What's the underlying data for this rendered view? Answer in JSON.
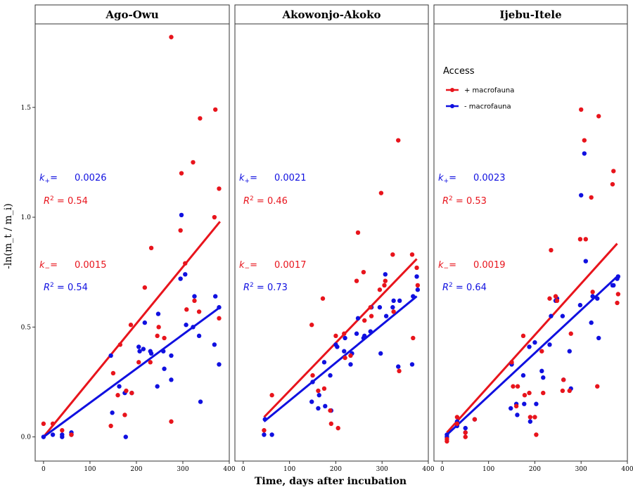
{
  "chart_data": {
    "type": "scatter",
    "x_axis_title": "Time, days after incubation",
    "y_axis_title": "-ln(m_t / m_i)",
    "xlim": [
      -18,
      400
    ],
    "ylim": [
      -0.11,
      1.88
    ],
    "x_ticks": [
      0,
      100,
      200,
      300,
      400
    ],
    "y_ticks": [
      0.0,
      0.5,
      1.0,
      1.5
    ],
    "y_tick_labels": [
      "0.0",
      "0.5",
      "1.0",
      "1.5"
    ],
    "grid": false,
    "legend": {
      "title": "Access",
      "placement": "inside-right-panel-top",
      "entries": [
        {
          "label": "+ macrofauna",
          "color": "#e8141c"
        },
        {
          "label": "- macrofauna",
          "color": "#1010e0"
        }
      ]
    },
    "colors": {
      "plus": "#e8141c",
      "minus": "#1010e0"
    },
    "panels": [
      {
        "name": "Ago-Owu",
        "k_plus": "0.0026",
        "r2_plus": "0.54",
        "k_minus": "0.0015",
        "r2_minus": "0.54",
        "line_plus": {
          "x": [
            0,
            380
          ],
          "y": [
            0.0,
            0.98
          ]
        },
        "line_minus": {
          "x": [
            0,
            380
          ],
          "y": [
            0.0,
            0.59
          ]
        },
        "points_plus": [
          [
            0,
            0.06
          ],
          [
            20,
            0.06
          ],
          [
            40,
            0.03
          ],
          [
            60,
            0.01
          ],
          [
            145,
            0.05
          ],
          [
            150,
            0.29
          ],
          [
            160,
            0.19
          ],
          [
            165,
            0.42
          ],
          [
            175,
            0.1
          ],
          [
            178,
            0.21
          ],
          [
            188,
            0.51
          ],
          [
            190,
            0.2
          ],
          [
            205,
            0.34
          ],
          [
            218,
            0.68
          ],
          [
            230,
            0.34
          ],
          [
            232,
            0.86
          ],
          [
            245,
            0.46
          ],
          [
            248,
            0.5
          ],
          [
            260,
            0.45
          ],
          [
            275,
            0.07
          ],
          [
            275,
            1.82
          ],
          [
            295,
            0.94
          ],
          [
            297,
            1.2
          ],
          [
            305,
            0.79
          ],
          [
            308,
            0.58
          ],
          [
            322,
            1.25
          ],
          [
            325,
            0.62
          ],
          [
            335,
            0.57
          ],
          [
            337,
            1.45
          ],
          [
            368,
            1.0
          ],
          [
            370,
            1.49
          ],
          [
            378,
            1.13
          ],
          [
            378,
            0.54
          ]
        ],
        "points_minus": [
          [
            0,
            0.0
          ],
          [
            20,
            0.01
          ],
          [
            40,
            0.0
          ],
          [
            40,
            0.01
          ],
          [
            60,
            0.02
          ],
          [
            60,
            0.01
          ],
          [
            145,
            0.37
          ],
          [
            148,
            0.11
          ],
          [
            163,
            0.23
          ],
          [
            175,
            0.2
          ],
          [
            177,
            0.0
          ],
          [
            190,
            0.2
          ],
          [
            205,
            0.41
          ],
          [
            207,
            0.39
          ],
          [
            215,
            0.4
          ],
          [
            218,
            0.52
          ],
          [
            230,
            0.39
          ],
          [
            232,
            0.38
          ],
          [
            245,
            0.23
          ],
          [
            247,
            0.56
          ],
          [
            258,
            0.39
          ],
          [
            260,
            0.31
          ],
          [
            275,
            0.37
          ],
          [
            275,
            0.26
          ],
          [
            295,
            0.72
          ],
          [
            297,
            1.01
          ],
          [
            305,
            0.74
          ],
          [
            307,
            0.51
          ],
          [
            322,
            0.5
          ],
          [
            325,
            0.64
          ],
          [
            335,
            0.46
          ],
          [
            338,
            0.16
          ],
          [
            368,
            0.42
          ],
          [
            370,
            0.64
          ],
          [
            378,
            0.59
          ],
          [
            378,
            0.33
          ]
        ]
      },
      {
        "name": "Akowonjo-Akoko",
        "k_plus": "0.0021",
        "r2_plus": "0.46",
        "k_minus": "0.0017",
        "r2_minus": "0.73",
        "line_plus": {
          "x": [
            45,
            375
          ],
          "y": [
            0.09,
            0.81
          ]
        },
        "line_minus": {
          "x": [
            45,
            375
          ],
          "y": [
            0.07,
            0.64
          ]
        },
        "points_plus": [
          [
            45,
            0.03
          ],
          [
            62,
            0.19
          ],
          [
            148,
            0.51
          ],
          [
            150,
            0.28
          ],
          [
            162,
            0.21
          ],
          [
            172,
            0.63
          ],
          [
            175,
            0.22
          ],
          [
            188,
            0.12
          ],
          [
            190,
            0.06
          ],
          [
            200,
            0.46
          ],
          [
            205,
            0.04
          ],
          [
            218,
            0.47
          ],
          [
            220,
            0.36
          ],
          [
            232,
            0.37
          ],
          [
            245,
            0.71
          ],
          [
            248,
            0.93
          ],
          [
            260,
            0.75
          ],
          [
            262,
            0.53
          ],
          [
            275,
            0.59
          ],
          [
            277,
            0.55
          ],
          [
            295,
            0.67
          ],
          [
            298,
            1.11
          ],
          [
            305,
            0.69
          ],
          [
            307,
            0.71
          ],
          [
            323,
            0.83
          ],
          [
            325,
            0.57
          ],
          [
            335,
            1.35
          ],
          [
            337,
            0.3
          ],
          [
            365,
            0.83
          ],
          [
            367,
            0.45
          ],
          [
            375,
            0.77
          ],
          [
            377,
            0.69
          ]
        ],
        "points_minus": [
          [
            45,
            0.01
          ],
          [
            47,
            0.08
          ],
          [
            62,
            0.01
          ],
          [
            148,
            0.16
          ],
          [
            150,
            0.25
          ],
          [
            162,
            0.13
          ],
          [
            164,
            0.19
          ],
          [
            175,
            0.34
          ],
          [
            177,
            0.14
          ],
          [
            188,
            0.28
          ],
          [
            190,
            0.12
          ],
          [
            200,
            0.42
          ],
          [
            203,
            0.41
          ],
          [
            218,
            0.39
          ],
          [
            220,
            0.45
          ],
          [
            232,
            0.33
          ],
          [
            235,
            0.38
          ],
          [
            245,
            0.47
          ],
          [
            248,
            0.54
          ],
          [
            260,
            0.45
          ],
          [
            262,
            0.46
          ],
          [
            275,
            0.48
          ],
          [
            277,
            0.59
          ],
          [
            295,
            0.59
          ],
          [
            297,
            0.38
          ],
          [
            307,
            0.74
          ],
          [
            309,
            0.55
          ],
          [
            323,
            0.59
          ],
          [
            325,
            0.62
          ],
          [
            335,
            0.32
          ],
          [
            338,
            0.62
          ],
          [
            365,
            0.33
          ],
          [
            367,
            0.64
          ],
          [
            375,
            0.73
          ],
          [
            377,
            0.67
          ]
        ]
      },
      {
        "name": "Ijebu-Itele",
        "k_plus": "0.0023",
        "r2_plus": "0.53",
        "k_minus": "0.0019",
        "r2_minus": "0.64",
        "line_plus": {
          "x": [
            10,
            378
          ],
          "y": [
            0.02,
            0.88
          ]
        },
        "line_minus": {
          "x": [
            10,
            378
          ],
          "y": [
            0.01,
            0.73
          ]
        },
        "points_plus": [
          [
            10,
            -0.01
          ],
          [
            10,
            -0.02
          ],
          [
            32,
            0.06
          ],
          [
            32,
            0.09
          ],
          [
            50,
            0.02
          ],
          [
            50,
            0.0
          ],
          [
            70,
            0.08
          ],
          [
            150,
            0.34
          ],
          [
            153,
            0.23
          ],
          [
            160,
            0.14
          ],
          [
            163,
            0.23
          ],
          [
            175,
            0.46
          ],
          [
            178,
            0.19
          ],
          [
            188,
            0.2
          ],
          [
            190,
            0.09
          ],
          [
            200,
            0.09
          ],
          [
            203,
            0.01
          ],
          [
            215,
            0.39
          ],
          [
            218,
            0.2
          ],
          [
            232,
            0.63
          ],
          [
            235,
            0.85
          ],
          [
            245,
            0.64
          ],
          [
            248,
            0.62
          ],
          [
            260,
            0.21
          ],
          [
            262,
            0.26
          ],
          [
            275,
            0.21
          ],
          [
            278,
            0.47
          ],
          [
            298,
            0.9
          ],
          [
            300,
            1.49
          ],
          [
            307,
            1.35
          ],
          [
            310,
            0.9
          ],
          [
            322,
            1.09
          ],
          [
            325,
            0.66
          ],
          [
            335,
            0.23
          ],
          [
            338,
            1.46
          ],
          [
            368,
            1.15
          ],
          [
            370,
            1.21
          ],
          [
            378,
            0.61
          ],
          [
            380,
            0.65
          ]
        ],
        "points_minus": [
          [
            10,
            0.01
          ],
          [
            10,
            0.0
          ],
          [
            32,
            0.05
          ],
          [
            32,
            0.07
          ],
          [
            50,
            0.04
          ],
          [
            50,
            0.02
          ],
          [
            70,
            0.08
          ],
          [
            148,
            0.13
          ],
          [
            150,
            0.33
          ],
          [
            160,
            0.15
          ],
          [
            162,
            0.1
          ],
          [
            175,
            0.28
          ],
          [
            177,
            0.15
          ],
          [
            188,
            0.41
          ],
          [
            190,
            0.07
          ],
          [
            200,
            0.43
          ],
          [
            203,
            0.15
          ],
          [
            215,
            0.3
          ],
          [
            218,
            0.27
          ],
          [
            232,
            0.42
          ],
          [
            235,
            0.55
          ],
          [
            245,
            0.62
          ],
          [
            248,
            0.63
          ],
          [
            260,
            0.55
          ],
          [
            262,
            0.26
          ],
          [
            275,
            0.39
          ],
          [
            278,
            0.22
          ],
          [
            298,
            0.6
          ],
          [
            300,
            1.1
          ],
          [
            307,
            1.29
          ],
          [
            310,
            0.8
          ],
          [
            322,
            0.52
          ],
          [
            325,
            0.64
          ],
          [
            335,
            0.63
          ],
          [
            338,
            0.45
          ],
          [
            368,
            0.69
          ],
          [
            370,
            0.69
          ],
          [
            378,
            0.72
          ],
          [
            380,
            0.73
          ]
        ]
      }
    ]
  }
}
